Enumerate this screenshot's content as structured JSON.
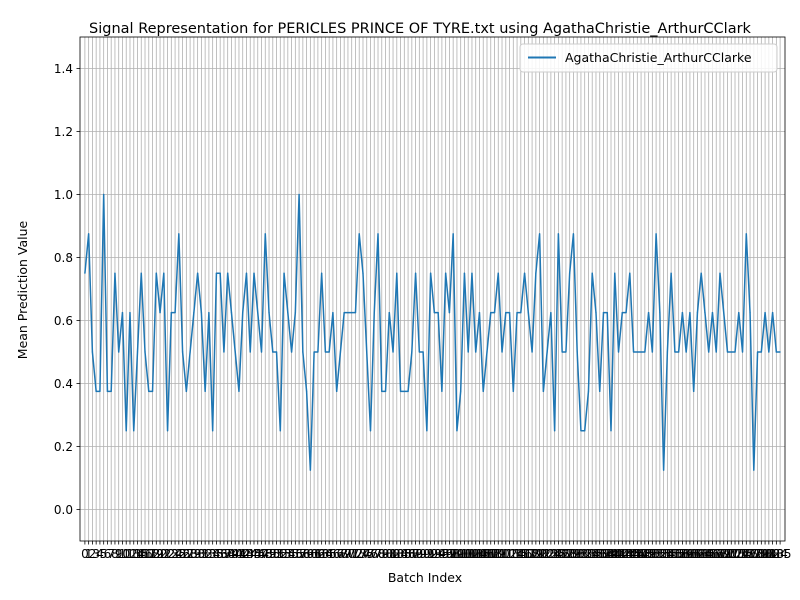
{
  "chart_data": {
    "type": "line",
    "title": "Signal Representation for PERICLES PRINCE OF TYRE.txt using AgathaChristie_ArthurCClark",
    "xlabel": "Batch Index",
    "ylabel": "Mean Prediction Value",
    "ylim": [
      -0.1,
      1.5
    ],
    "xlim": [
      -1.3,
      186.3
    ],
    "yticks": [
      "0.0",
      "0.2",
      "0.4",
      "0.6",
      "0.8",
      "1.0",
      "1.2",
      "1.4"
    ],
    "grid": true,
    "legend_position": "top-right",
    "series": [
      {
        "name": "AgathaChristie_ArthurCClarke",
        "color": "#1f77b4",
        "x": [
          0,
          1,
          2,
          3,
          4,
          5,
          6,
          7,
          8,
          9,
          10,
          11,
          12,
          13,
          14,
          15,
          16,
          17,
          18,
          19,
          20,
          21,
          22,
          23,
          24,
          25,
          26,
          27,
          28,
          29,
          30,
          31,
          32,
          33,
          34,
          35,
          36,
          37,
          38,
          39,
          40,
          41,
          42,
          43,
          44,
          45,
          46,
          47,
          48,
          49,
          50,
          51,
          52,
          53,
          54,
          55,
          56,
          57,
          58,
          59,
          60,
          61,
          62,
          63,
          64,
          65,
          66,
          67,
          68,
          69,
          70,
          71,
          72,
          73,
          74,
          75,
          76,
          77,
          78,
          79,
          80,
          81,
          82,
          83,
          84,
          85,
          86,
          87,
          88,
          89,
          90,
          91,
          92,
          93,
          94,
          95,
          96,
          97,
          98,
          99,
          100,
          101,
          102,
          103,
          104,
          105,
          106,
          107,
          108,
          109,
          110,
          111,
          112,
          113,
          114,
          115,
          116,
          117,
          118,
          119,
          120,
          121,
          122,
          123,
          124,
          125,
          126,
          127,
          128,
          129,
          130,
          131,
          132,
          133,
          134,
          135,
          136,
          137,
          138,
          139,
          140,
          141,
          142,
          143,
          144,
          145,
          146,
          147,
          148,
          149,
          150,
          151,
          152,
          153,
          154,
          155,
          156,
          157,
          158,
          159,
          160,
          161,
          162,
          163,
          164,
          165,
          166,
          167,
          168,
          169,
          170,
          171,
          172,
          173,
          174,
          175,
          176,
          177,
          178,
          179,
          180,
          181,
          182,
          183,
          184,
          185
        ],
        "values": [
          0.75,
          0.875,
          0.5,
          0.375,
          0.375,
          1.0,
          0.375,
          0.375,
          0.75,
          0.5,
          0.625,
          0.25,
          0.625,
          0.25,
          0.5,
          0.75,
          0.5,
          0.375,
          0.375,
          0.75,
          0.625,
          0.75,
          0.25,
          0.625,
          0.625,
          0.875,
          0.5,
          0.375,
          0.5,
          0.625,
          0.75,
          0.625,
          0.375,
          0.625,
          0.25,
          0.75,
          0.75,
          0.5,
          0.75,
          0.625,
          0.5,
          0.375,
          0.625,
          0.75,
          0.5,
          0.75,
          0.625,
          0.5,
          0.875,
          0.625,
          0.5,
          0.5,
          0.25,
          0.75,
          0.625,
          0.5,
          0.625,
          1.0,
          0.5,
          0.375,
          0.125,
          0.5,
          0.5,
          0.75,
          0.5,
          0.5,
          0.625,
          0.375,
          0.5,
          0.625,
          0.625,
          0.625,
          0.625,
          0.875,
          0.75,
          0.5,
          0.25,
          0.625,
          0.875,
          0.375,
          0.375,
          0.625,
          0.5,
          0.75,
          0.375,
          0.375,
          0.375,
          0.5,
          0.75,
          0.5,
          0.5,
          0.25,
          0.75,
          0.625,
          0.625,
          0.375,
          0.75,
          0.625,
          0.875,
          0.25,
          0.375,
          0.75,
          0.5,
          0.75,
          0.5,
          0.625,
          0.375,
          0.5,
          0.625,
          0.625,
          0.75,
          0.5,
          0.625,
          0.625,
          0.375,
          0.625,
          0.625,
          0.75,
          0.625,
          0.5,
          0.75,
          0.875,
          0.375,
          0.5,
          0.625,
          0.25,
          0.875,
          0.5,
          0.5,
          0.75,
          0.875,
          0.5,
          0.25,
          0.25,
          0.375,
          0.75,
          0.625,
          0.375,
          0.625,
          0.625,
          0.25,
          0.75,
          0.5,
          0.625,
          0.625,
          0.75,
          0.5,
          0.5,
          0.5,
          0.5,
          0.625,
          0.5,
          0.875,
          0.625,
          0.125,
          0.5,
          0.75,
          0.5,
          0.5,
          0.625,
          0.5,
          0.625,
          0.375,
          0.625,
          0.75,
          0.625,
          0.5,
          0.625,
          0.5,
          0.75,
          0.625,
          0.5,
          0.5,
          0.5,
          0.625,
          0.5,
          0.875,
          0.625,
          0.125,
          0.5,
          0.5,
          0.625,
          0.5,
          0.625,
          0.5,
          0.5
        ]
      }
    ]
  }
}
